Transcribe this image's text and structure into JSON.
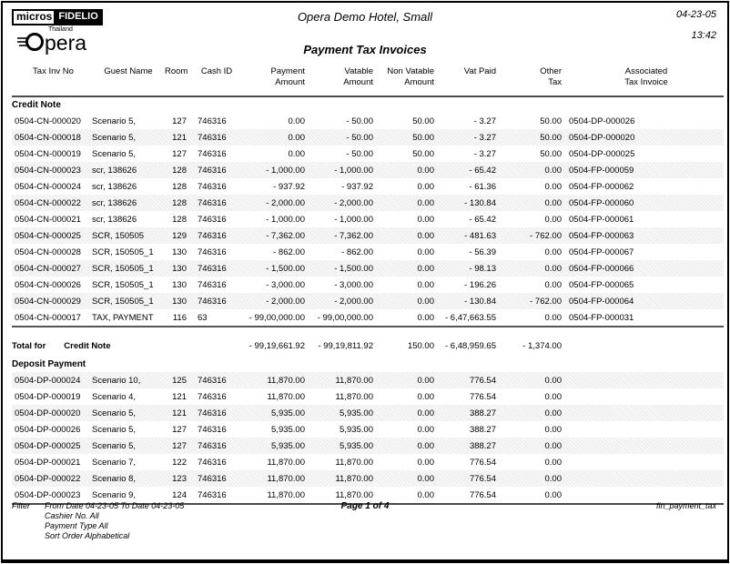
{
  "logo": {
    "micros": "micros",
    "fidelio": "FIDELIO",
    "country": "Thailand",
    "opera_text": "pera"
  },
  "header": {
    "hotel": "Opera Demo Hotel, Small",
    "title": "Payment Tax Invoices",
    "date": "04-23-05",
    "time": "13:42"
  },
  "columns": [
    {
      "line1": "Tax Inv No",
      "line2": ""
    },
    {
      "line1": "Guest Name",
      "line2": ""
    },
    {
      "line1": "Room",
      "line2": ""
    },
    {
      "line1": "Cash ID",
      "line2": ""
    },
    {
      "line1": "Payment",
      "line2": "Amount"
    },
    {
      "line1": "Vatable",
      "line2": "Amount"
    },
    {
      "line1": "Non Vatable",
      "line2": "Amount"
    },
    {
      "line1": "Vat Paid",
      "line2": ""
    },
    {
      "line1": "Other",
      "line2": "Tax"
    },
    {
      "line1": "Associated",
      "line2": "Tax Invoice"
    }
  ],
  "sections": [
    {
      "name": "Credit Note",
      "rows": [
        [
          "0504-CN-000020",
          "Scenario 5,",
          "127",
          "746316",
          "0.00",
          "- 50.00",
          "50.00",
          "- 3.27",
          "50.00",
          "0504-DP-000026"
        ],
        [
          "0504-CN-000018",
          "Scenario 5,",
          "121",
          "746316",
          "0.00",
          "- 50.00",
          "50.00",
          "- 3.27",
          "50.00",
          "0504-DP-000020"
        ],
        [
          "0504-CN-000019",
          "Scenario 5,",
          "127",
          "746316",
          "0.00",
          "- 50.00",
          "50.00",
          "- 3.27",
          "50.00",
          "0504-DP-000025"
        ],
        [
          "0504-CN-000023",
          "scr, 138626",
          "128",
          "746316",
          "- 1,000.00",
          "- 1,000.00",
          "0.00",
          "- 65.42",
          "0.00",
          "0504-FP-000059"
        ],
        [
          "0504-CN-000024",
          "scr, 138626",
          "128",
          "746316",
          "- 937.92",
          "- 937.92",
          "0.00",
          "- 61.36",
          "0.00",
          "0504-FP-000062"
        ],
        [
          "0504-CN-000022",
          "scr, 138626",
          "128",
          "746316",
          "- 2,000.00",
          "- 2,000.00",
          "0.00",
          "- 130.84",
          "0.00",
          "0504-FP-000060"
        ],
        [
          "0504-CN-000021",
          "scr, 138626",
          "128",
          "746316",
          "- 1,000.00",
          "- 1,000.00",
          "0.00",
          "- 65.42",
          "0.00",
          "0504-FP-000061"
        ],
        [
          "0504-CN-000025",
          "SCR, 150505",
          "129",
          "746316",
          "- 7,362.00",
          "- 7,362.00",
          "0.00",
          "- 481.63",
          "- 762.00",
          "0504-FP-000063"
        ],
        [
          "0504-CN-000028",
          "SCR, 150505_1",
          "130",
          "746316",
          "- 862.00",
          "- 862.00",
          "0.00",
          "- 56.39",
          "0.00",
          "0504-FP-000067"
        ],
        [
          "0504-CN-000027",
          "SCR, 150505_1",
          "130",
          "746316",
          "- 1,500.00",
          "- 1,500.00",
          "0.00",
          "- 98.13",
          "0.00",
          "0504-FP-000066"
        ],
        [
          "0504-CN-000026",
          "SCR, 150505_1",
          "130",
          "746316",
          "- 3,000.00",
          "- 3,000.00",
          "0.00",
          "- 196.26",
          "0.00",
          "0504-FP-000065"
        ],
        [
          "0504-CN-000029",
          "SCR, 150505_1",
          "130",
          "746316",
          "- 2,000.00",
          "- 2,000.00",
          "0.00",
          "- 130.84",
          "- 762.00",
          "0504-FP-000064"
        ],
        [
          "0504-CN-000017",
          "TAX, PAYMENT",
          "116",
          "63",
          "- 99,00,000.00",
          "- 99,00,000.00",
          "0.00",
          "- 6,47,663.55",
          "0.00",
          "0504-FP-000031"
        ]
      ],
      "total": {
        "label": "Total for",
        "section": "Credit Note",
        "payment": "- 99,19,661.92",
        "vatable": "- 99,19,811.92",
        "non_vatable": "150.00",
        "vat_paid": "- 6,48,959.65",
        "other_tax": "- 1,374.00"
      }
    },
    {
      "name": "Deposit Payment",
      "rows": [
        [
          "0504-DP-000024",
          "Scenario 10,",
          "125",
          "746316",
          "11,870.00",
          "11,870.00",
          "0.00",
          "776.54",
          "0.00",
          ""
        ],
        [
          "0504-DP-000019",
          "Scenario 4,",
          "121",
          "746316",
          "11,870.00",
          "11,870.00",
          "0.00",
          "776.54",
          "0.00",
          ""
        ],
        [
          "0504-DP-000020",
          "Scenario 5,",
          "121",
          "746316",
          "5,935.00",
          "5,935.00",
          "0.00",
          "388.27",
          "0.00",
          ""
        ],
        [
          "0504-DP-000026",
          "Scenario 5,",
          "127",
          "746316",
          "5,935.00",
          "5,935.00",
          "0.00",
          "388.27",
          "0.00",
          ""
        ],
        [
          "0504-DP-000025",
          "Scenario 5,",
          "127",
          "746316",
          "5,935.00",
          "5,935.00",
          "0.00",
          "388.27",
          "0.00",
          ""
        ],
        [
          "0504-DP-000021",
          "Scenario 7,",
          "122",
          "746316",
          "11,870.00",
          "11,870.00",
          "0.00",
          "776.54",
          "0.00",
          ""
        ],
        [
          "0504-DP-000022",
          "Scenario 8,",
          "123",
          "746316",
          "11,870.00",
          "11,870.00",
          "0.00",
          "776.54",
          "0.00",
          ""
        ],
        [
          "0504-DP-000023",
          "Scenario 9,",
          "124",
          "746316",
          "11,870.00",
          "11,870.00",
          "0.00",
          "776.54",
          "0.00",
          ""
        ]
      ]
    }
  ],
  "footer": {
    "filter_label": "Filter",
    "lines": [
      "From Date 04-23-05   To Date 04-23-05",
      "Cashier No. All",
      "Payment Type All",
      "Sort Order Alphabetical"
    ],
    "page": "Page 1 of 4",
    "report_id": "fin_payment_tax"
  }
}
